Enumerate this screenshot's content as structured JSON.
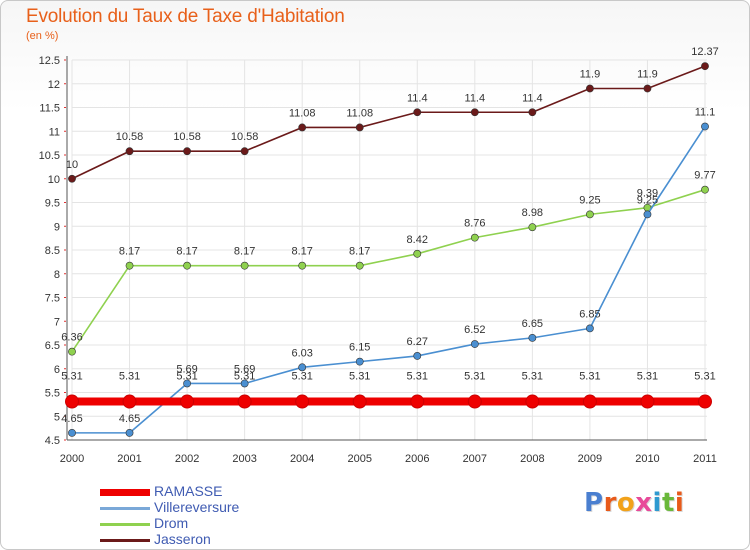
{
  "header": {
    "title": "Evolution du Taux de Taxe d'Habitation",
    "subtitle": "(en %)"
  },
  "chart_data": {
    "type": "line",
    "title": "Evolution du Taux de Taxe d'Habitation",
    "subtitle": "(en %)",
    "xlabel": "",
    "ylabel": "",
    "ylim": [
      4.5,
      12.5
    ],
    "yticks": [
      "4.5",
      "5",
      "5.5",
      "6",
      "6.5",
      "7",
      "7.5",
      "8",
      "8.5",
      "9",
      "9.5",
      "10",
      "10.5",
      "11",
      "11.5",
      "12",
      "12.5"
    ],
    "x": [
      "2000",
      "2001",
      "2002",
      "2003",
      "2004",
      "2005",
      "2006",
      "2007",
      "2008",
      "2009",
      "2010",
      "2011"
    ],
    "grid": true,
    "legend_position": "bottom-left",
    "series": [
      {
        "name": "Jasseron",
        "color": "#6b1a1a",
        "values": [
          10,
          10.58,
          10.58,
          10.58,
          11.08,
          11.08,
          11.4,
          11.4,
          11.4,
          11.9,
          11.9,
          12.37
        ],
        "labels": [
          "10",
          "10.58",
          "10.58",
          "10.58",
          "11.08",
          "11.08",
          "11.4",
          "11.4",
          "11.4",
          "11.9",
          "11.9",
          "12.37"
        ]
      },
      {
        "name": "Drom",
        "color": "#8fd14f",
        "values": [
          6.36,
          8.17,
          8.17,
          8.17,
          8.17,
          8.17,
          8.42,
          8.76,
          8.98,
          9.25,
          9.39,
          9.77
        ],
        "labels": [
          "6.36",
          "8.17",
          "8.17",
          "8.17",
          "8.17",
          "8.17",
          "8.42",
          "8.76",
          "8.98",
          "9.25",
          "9.39",
          "9.77"
        ]
      },
      {
        "name": "Villereversure",
        "color": "#4a8fd1",
        "values": [
          4.65,
          4.65,
          5.69,
          5.69,
          6.03,
          6.15,
          6.27,
          6.52,
          6.65,
          6.85,
          9.25,
          11.1
        ],
        "labels": [
          "4.65",
          "4.65",
          "5.69",
          "5.69",
          "6.03",
          "6.15",
          "6.27",
          "6.52",
          "6.65",
          "6.85",
          "9.25",
          "11.1"
        ]
      },
      {
        "name": "RAMASSE",
        "color": "#ee0000",
        "values": [
          5.31,
          5.31,
          5.31,
          5.31,
          5.31,
          5.31,
          5.31,
          5.31,
          5.31,
          5.31,
          5.31,
          5.31
        ],
        "labels": [
          "5.31",
          "5.31",
          "5.31",
          "5.31",
          "5.31",
          "5.31",
          "5.31",
          "5.31",
          "5.31",
          "5.31",
          "5.31",
          "5.31"
        ]
      }
    ]
  },
  "legend": {
    "items": [
      {
        "label": "RAMASSE",
        "color": "#ee0000"
      },
      {
        "label": "Villereversure",
        "color": "#7aa8d8"
      },
      {
        "label": "Drom",
        "color": "#8fd14f"
      },
      {
        "label": "Jasseron",
        "color": "#6b1a1a"
      }
    ]
  },
  "logo": {
    "text": "Proxiti",
    "letters": [
      "P",
      "r",
      "o",
      "x",
      "i",
      "t",
      "i"
    ],
    "colors": [
      "#4a7fd0",
      "#e85a1a",
      "#f2a21a",
      "#e84a9a",
      "#2e9ad0",
      "#6ab83a",
      "#e85a1a"
    ]
  }
}
